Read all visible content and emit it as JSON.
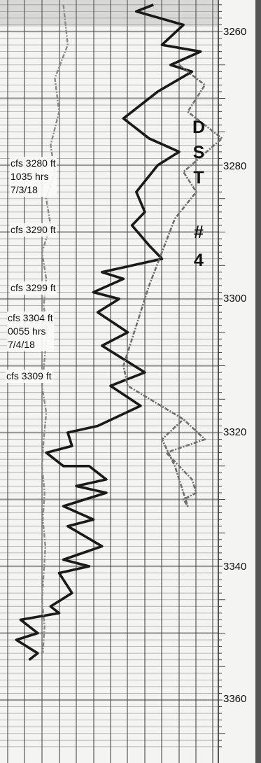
{
  "depth_scale": {
    "unit": "ft",
    "labels": [
      "3260",
      "3280",
      "3300",
      "3320",
      "3340",
      "3360"
    ]
  },
  "test_label": {
    "letters": [
      "D",
      "S",
      "T",
      "#",
      "4"
    ]
  },
  "annotations": [
    {
      "lines": [
        "cfs 3280 ft",
        "1035 hrs",
        "7/3/18"
      ]
    },
    {
      "lines": [
        "cfs 3290 ft"
      ]
    },
    {
      "lines": [
        "cfs 3299 ft"
      ]
    },
    {
      "lines": [
        "cfs 3304 ft",
        "0055 hrs",
        "7/4/18"
      ]
    },
    {
      "lines": [
        "cfs 3309 ft"
      ]
    }
  ],
  "chart_data": {
    "type": "line",
    "y_axis": {
      "label": "",
      "unit": "ft",
      "range": [
        3256,
        3367
      ],
      "reversed": true,
      "ticks": [
        3260,
        3280,
        3300,
        3320,
        3340,
        3360
      ]
    },
    "grid": true,
    "series": [
      {
        "style": "dark",
        "color": "#1a1a1a",
        "x": [
          13.0,
          11.0,
          16.5,
          14.0,
          18.5,
          15.0,
          17.5,
          13.5,
          9.5,
          12.5,
          16.0,
          13.5,
          11.0,
          12.0,
          10.5,
          12.5,
          14.0,
          7.0,
          9.5,
          6.0,
          9.0,
          6.5,
          10.0,
          7.0,
          12.0,
          8.0,
          11.5,
          6.5,
          3.0,
          3.5,
          0.5,
          2.5,
          5.5,
          7.5,
          4.0,
          7.5,
          2.5,
          6.0,
          3.0,
          7.0,
          2.5,
          5.5,
          2.0,
          3.5,
          1.0,
          2.0,
          -2.5,
          -0.5,
          -3.0,
          -0.5,
          -1.5
        ],
        "y": [
          3256,
          3257,
          3259,
          3262,
          3263,
          3265,
          3266,
          3269,
          3273,
          3276,
          3278,
          3280,
          3284,
          3287,
          3289,
          3292,
          3294,
          3296,
          3297,
          3299,
          3300,
          3302,
          3305,
          3307,
          3311,
          3313,
          3316,
          3319,
          3320,
          3322,
          3323,
          3325,
          3325,
          3327,
          3328,
          3329,
          3331,
          3333,
          3334,
          3337,
          3339,
          3340,
          3341,
          3344,
          3346,
          3347,
          3348,
          3350,
          3351,
          3353,
          3354
        ]
      },
      {
        "style": "gray",
        "color": "#8a8a8a",
        "x": [
          2.5,
          3.0,
          1.5,
          2.0,
          1.0,
          1.5,
          0.5,
          1.0,
          0.0,
          0.5,
          0.2,
          0.6,
          0.3,
          0.0,
          0.5,
          0.2,
          0.0,
          0.3,
          0.1,
          0.4,
          0.2,
          0.0,
          0.3,
          0.1
        ],
        "y": [
          3256,
          3262,
          3267,
          3272,
          3277,
          3281,
          3285,
          3289,
          3293,
          3297,
          3301,
          3305,
          3309,
          3313,
          3317,
          3321,
          3325,
          3329,
          3333,
          3337,
          3341,
          3345,
          3349,
          3353
        ]
      },
      {
        "style": "medium-gray",
        "color": "#6f6f6f",
        "x": [
          16.0,
          19.0,
          17.0,
          21.0,
          16.5,
          18.0,
          15.5,
          12.5,
          9.5,
          10.0,
          16.5,
          19.0,
          14.5,
          16.0,
          17.5,
          18.0,
          16.5,
          17.0,
          15.5,
          14.0,
          16.5
        ],
        "y": [
          3265,
          3268,
          3272,
          3276,
          3281,
          3284,
          3288,
          3298,
          3310,
          3313,
          3318,
          3321,
          3323,
          3325,
          3327,
          3329,
          3330,
          3331,
          3325,
          3321,
          3318
        ]
      }
    ]
  }
}
